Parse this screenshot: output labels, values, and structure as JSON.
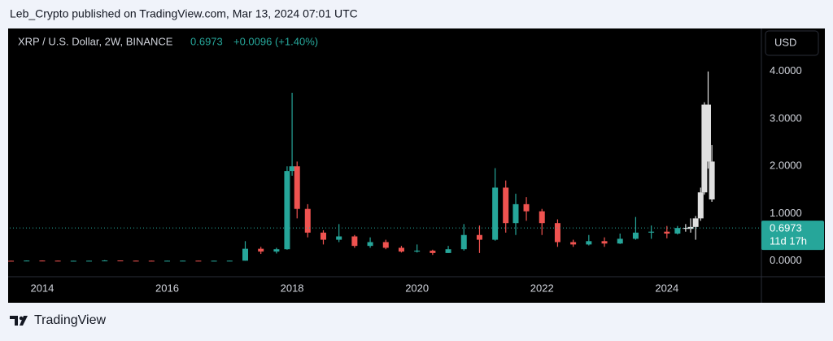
{
  "header": {
    "published": "Leb_Crypto published on TradingView.com, Mar 13, 2024 07:01 UTC"
  },
  "footer": {
    "brand": "TradingView"
  },
  "chart_data": {
    "type": "candlestick",
    "symbol": "XRP / U.S. Dollar, 2W, BINANCE",
    "last_price": 0.6973,
    "change": "+0.0096 (+1.40%)",
    "currency": "USD",
    "countdown": "11d 17h",
    "up_color": "#26a69a",
    "down_color": "#ef5350",
    "x": [
      2013.5,
      2013.75,
      2014.0,
      2014.25,
      2014.5,
      2014.75,
      2015.0,
      2015.25,
      2015.5,
      2015.75,
      2016.0,
      2016.25,
      2016.5,
      2016.75,
      2017.0,
      2017.25,
      2017.5,
      2017.75,
      2017.92,
      2018.0,
      2018.08,
      2018.25,
      2018.5,
      2018.75,
      2019.0,
      2019.25,
      2019.5,
      2019.75,
      2020.0,
      2020.25,
      2020.5,
      2020.75,
      2021.0,
      2021.25,
      2021.42,
      2021.58,
      2021.75,
      2022.0,
      2022.25,
      2022.5,
      2022.75,
      2023.0,
      2023.25,
      2023.5,
      2023.75,
      2024.0,
      2024.17
    ],
    "open": [
      0.006,
      0.005,
      0.01,
      0.008,
      0.006,
      0.006,
      0.007,
      0.012,
      0.008,
      0.007,
      0.006,
      0.007,
      0.008,
      0.007,
      0.007,
      0.008,
      0.26,
      0.2,
      0.25,
      1.9,
      2.0,
      1.1,
      0.6,
      0.45,
      0.52,
      0.32,
      0.4,
      0.28,
      0.2,
      0.22,
      0.17,
      0.25,
      0.55,
      0.45,
      1.55,
      0.8,
      1.2,
      1.05,
      0.8,
      0.4,
      0.35,
      0.42,
      0.37,
      0.47,
      0.6,
      0.62,
      0.58
    ],
    "high": [
      0.008,
      0.012,
      0.014,
      0.009,
      0.007,
      0.008,
      0.02,
      0.013,
      0.01,
      0.008,
      0.008,
      0.009,
      0.009,
      0.008,
      0.01,
      0.42,
      0.3,
      0.28,
      2.0,
      3.55,
      2.1,
      1.2,
      0.65,
      0.78,
      0.55,
      0.5,
      0.45,
      0.32,
      0.35,
      0.24,
      0.32,
      0.78,
      0.75,
      1.96,
      1.7,
      1.42,
      1.35,
      1.1,
      0.88,
      0.45,
      0.55,
      0.5,
      0.58,
      0.93,
      0.75,
      0.74,
      0.74
    ],
    "low": [
      0.004,
      0.004,
      0.007,
      0.005,
      0.005,
      0.005,
      0.006,
      0.007,
      0.006,
      0.005,
      0.005,
      0.006,
      0.006,
      0.006,
      0.006,
      0.008,
      0.15,
      0.16,
      0.24,
      1.8,
      0.9,
      0.5,
      0.35,
      0.4,
      0.28,
      0.28,
      0.25,
      0.18,
      0.18,
      0.13,
      0.17,
      0.22,
      0.17,
      0.43,
      0.6,
      0.55,
      0.85,
      0.55,
      0.3,
      0.3,
      0.33,
      0.3,
      0.36,
      0.45,
      0.47,
      0.48,
      0.56
    ],
    "close": [
      0.005,
      0.01,
      0.008,
      0.006,
      0.006,
      0.007,
      0.012,
      0.008,
      0.007,
      0.006,
      0.007,
      0.008,
      0.007,
      0.007,
      0.008,
      0.26,
      0.2,
      0.25,
      1.9,
      2.0,
      1.1,
      0.6,
      0.45,
      0.52,
      0.32,
      0.4,
      0.28,
      0.2,
      0.22,
      0.17,
      0.25,
      0.55,
      0.45,
      1.55,
      0.8,
      1.2,
      1.05,
      0.8,
      0.4,
      0.35,
      0.42,
      0.37,
      0.47,
      0.6,
      0.62,
      0.58,
      0.6973
    ],
    "projection": {
      "color": "#e0e0e0",
      "x": [
        2024.3,
        2024.38,
        2024.46,
        2024.54,
        2024.6,
        2024.66,
        2024.72
      ],
      "open": [
        0.7,
        0.68,
        0.72,
        0.9,
        1.45,
        3.3,
        2.1
      ],
      "high": [
        0.78,
        0.9,
        0.95,
        1.55,
        3.35,
        4.0,
        2.45
      ],
      "low": [
        0.62,
        0.6,
        0.45,
        0.85,
        1.4,
        1.95,
        1.25
      ],
      "close": [
        0.68,
        0.72,
        0.9,
        1.45,
        3.3,
        2.1,
        1.3
      ]
    },
    "xlim": [
      2013.48,
      2025.5
    ],
    "xticks": [
      2014,
      2016,
      2018,
      2020,
      2022,
      2024
    ],
    "ylim": [
      -0.33,
      4.34
    ],
    "yticks": [
      {
        "value": 0,
        "label": "0.0000"
      },
      {
        "value": 1,
        "label": "1.0000"
      },
      {
        "value": 2,
        "label": "2.0000"
      },
      {
        "value": 3,
        "label": "3.0000"
      },
      {
        "value": 4,
        "label": "4.0000"
      }
    ]
  }
}
